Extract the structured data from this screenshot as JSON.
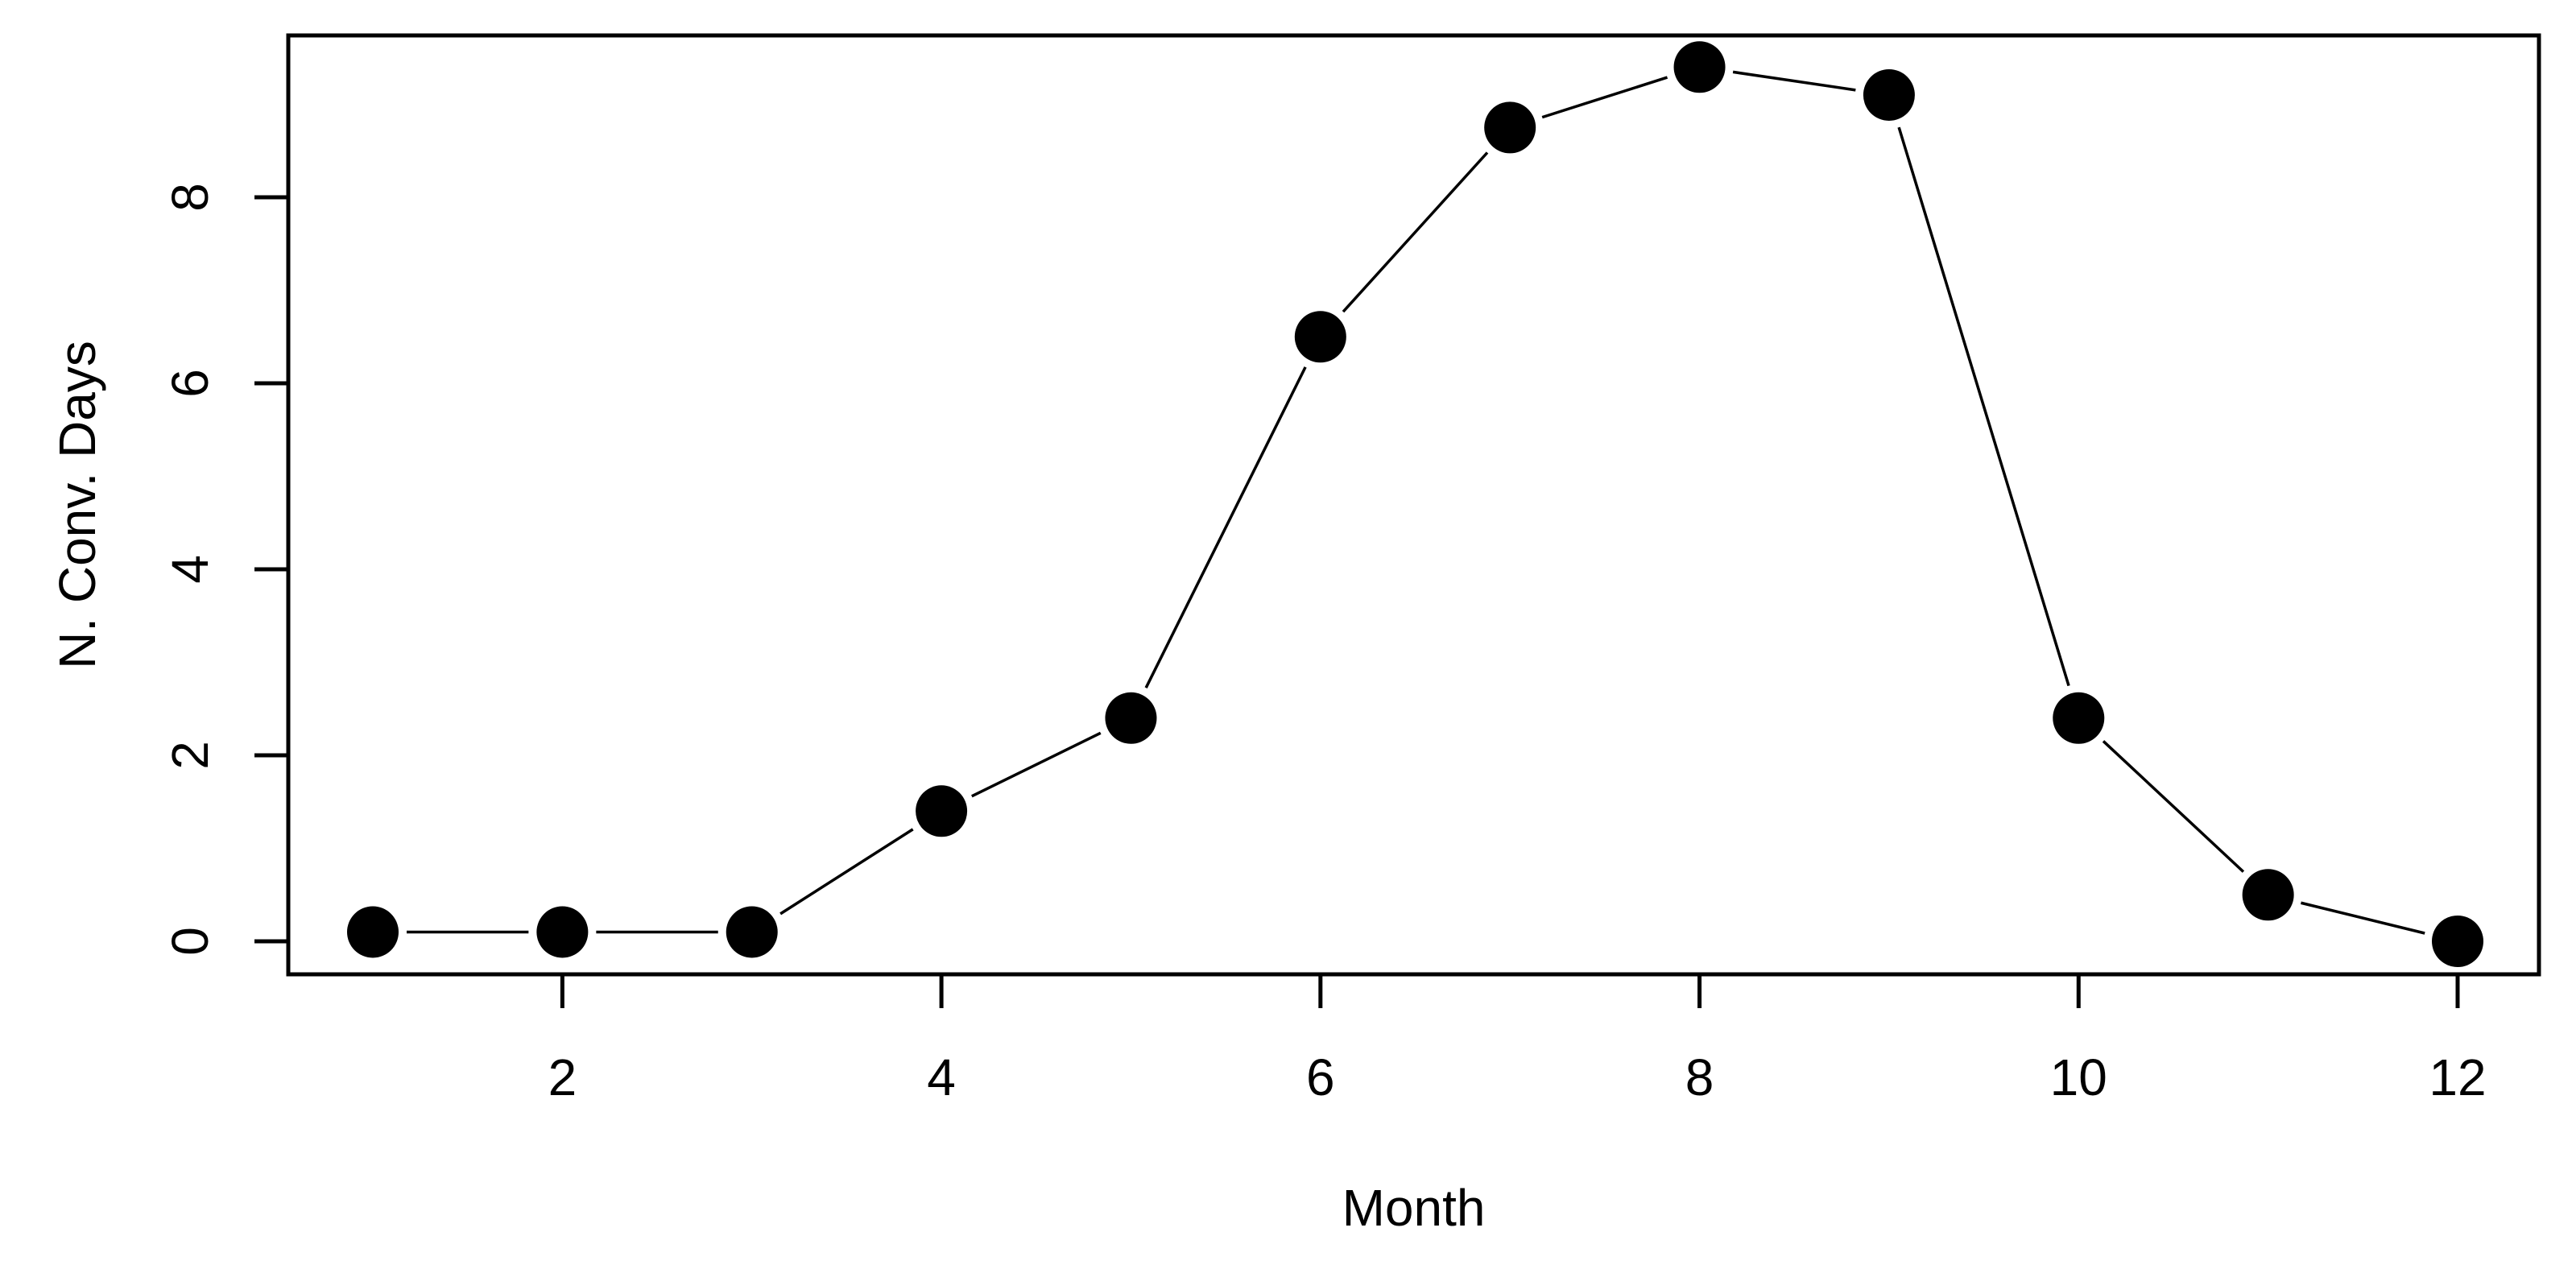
{
  "figure": {
    "background": "#ffffff",
    "foreground": "#000000"
  },
  "chart_data": {
    "type": "line",
    "title": "",
    "xlabel": "Month",
    "ylabel": "N. Conv. Days",
    "x": [
      1,
      2,
      3,
      4,
      5,
      6,
      7,
      8,
      9,
      10,
      11,
      12
    ],
    "values": [
      0.1,
      0.1,
      0.1,
      1.4,
      2.4,
      6.5,
      8.75,
      9.4,
      9.1,
      2.4,
      0.5,
      0.0
    ],
    "x_ticks": [
      2,
      4,
      6,
      8,
      10,
      12
    ],
    "y_ticks": [
      0,
      2,
      4,
      6,
      8
    ],
    "xlim": [
      0.55,
      12.43
    ],
    "ylim": [
      -0.36,
      9.74
    ],
    "grid": false,
    "legend": false,
    "marker": "filled-circle",
    "line_style": "solid",
    "series_color": "#000000",
    "axis_color": "#000000",
    "plot_background": "#ffffff"
  }
}
